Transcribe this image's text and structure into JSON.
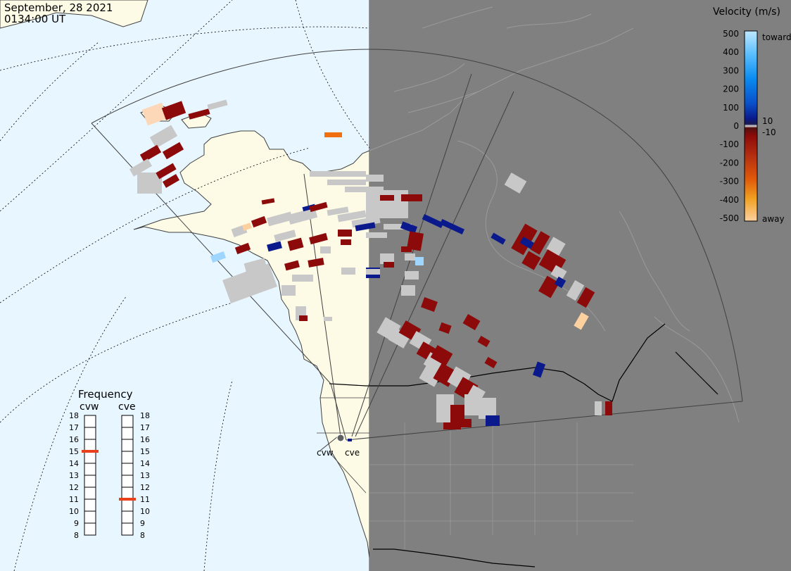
{
  "timestamp": {
    "date": "September, 28 2021",
    "time": "0134:00 UT"
  },
  "radars": {
    "west": "cvw",
    "east": "cve"
  },
  "frequency": {
    "title": "Frequency",
    "ticks": [
      "18",
      "17",
      "16",
      "15",
      "14",
      "13",
      "12",
      "11",
      "10",
      "9",
      "8"
    ],
    "cvw_value": 15,
    "cve_value": 11,
    "marker_color": "#e8401a"
  },
  "velocity_scale": {
    "title": "Velocity (m/s)",
    "ticks": [
      "500",
      "400",
      "300",
      "200",
      "100",
      "0",
      "-100",
      "-200",
      "-300",
      "-400",
      "-500"
    ],
    "inner_labels": {
      "pos": "10",
      "neg": "-10"
    },
    "toward_label": "toward",
    "away_label": "away",
    "colors": {
      "light_blue": "#bfe7ff",
      "blue": "#0a8cf0",
      "dark_blue": "#0a1a8c",
      "dark_red": "#8c0a0a",
      "red": "#b43010",
      "orange": "#f07010",
      "light_orange": "#fdd0a0",
      "ground_scatter": "#c8c8c8"
    }
  },
  "map_colors": {
    "ocean_day": "#e8f6ff",
    "land_day": "#fdfbe6",
    "night": "#808080",
    "night_land_outline": "#9a9a9a",
    "fov_outline": "#404040"
  }
}
